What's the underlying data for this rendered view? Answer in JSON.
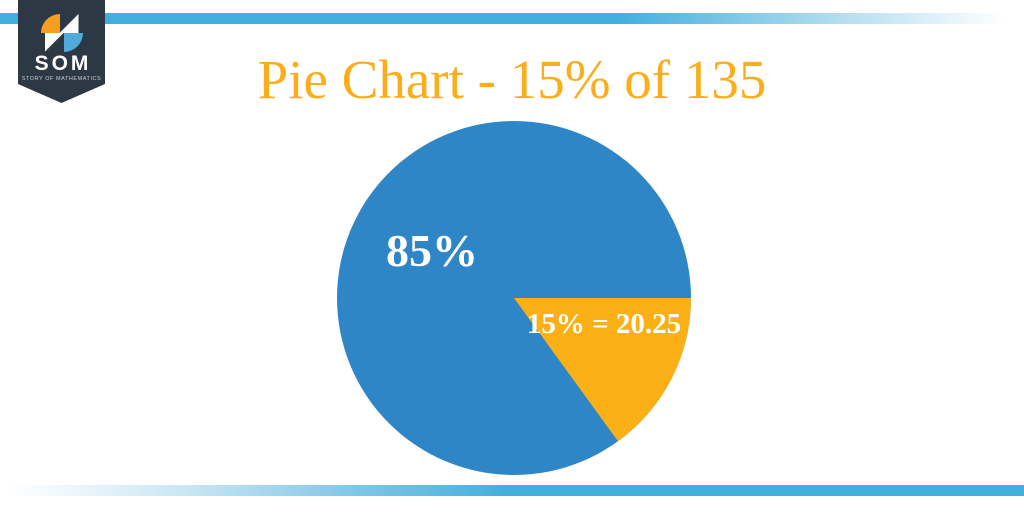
{
  "brand": {
    "name": "SOM",
    "tagline": "STORY OF MATHEMATICS"
  },
  "title": {
    "text": "Pie Chart - 15% of 135"
  },
  "chart_data": {
    "type": "pie",
    "title": "Pie Chart - 15% of 135",
    "total": 135,
    "percent_highlighted": 15,
    "highlighted_value": 20.25,
    "start_angle_deg": 0,
    "direction": "clockwise",
    "legend": "none",
    "label_color": "#FFFFFF",
    "slices": [
      {
        "name": "remaining-85",
        "label": "85%",
        "pct": 85,
        "color": "#2E86C6"
      },
      {
        "name": "portion-15",
        "label": "15% = 20.25",
        "pct": 15,
        "value": 20.25,
        "color": "#FBB116"
      }
    ]
  },
  "colors": {
    "accent_bar": "#41AEDD",
    "title": "#FBAD1A",
    "pennant": "#2C3945",
    "icon_orange": "#F59E20",
    "icon_blue": "#4FABD9",
    "background": "#FFFFFF"
  }
}
